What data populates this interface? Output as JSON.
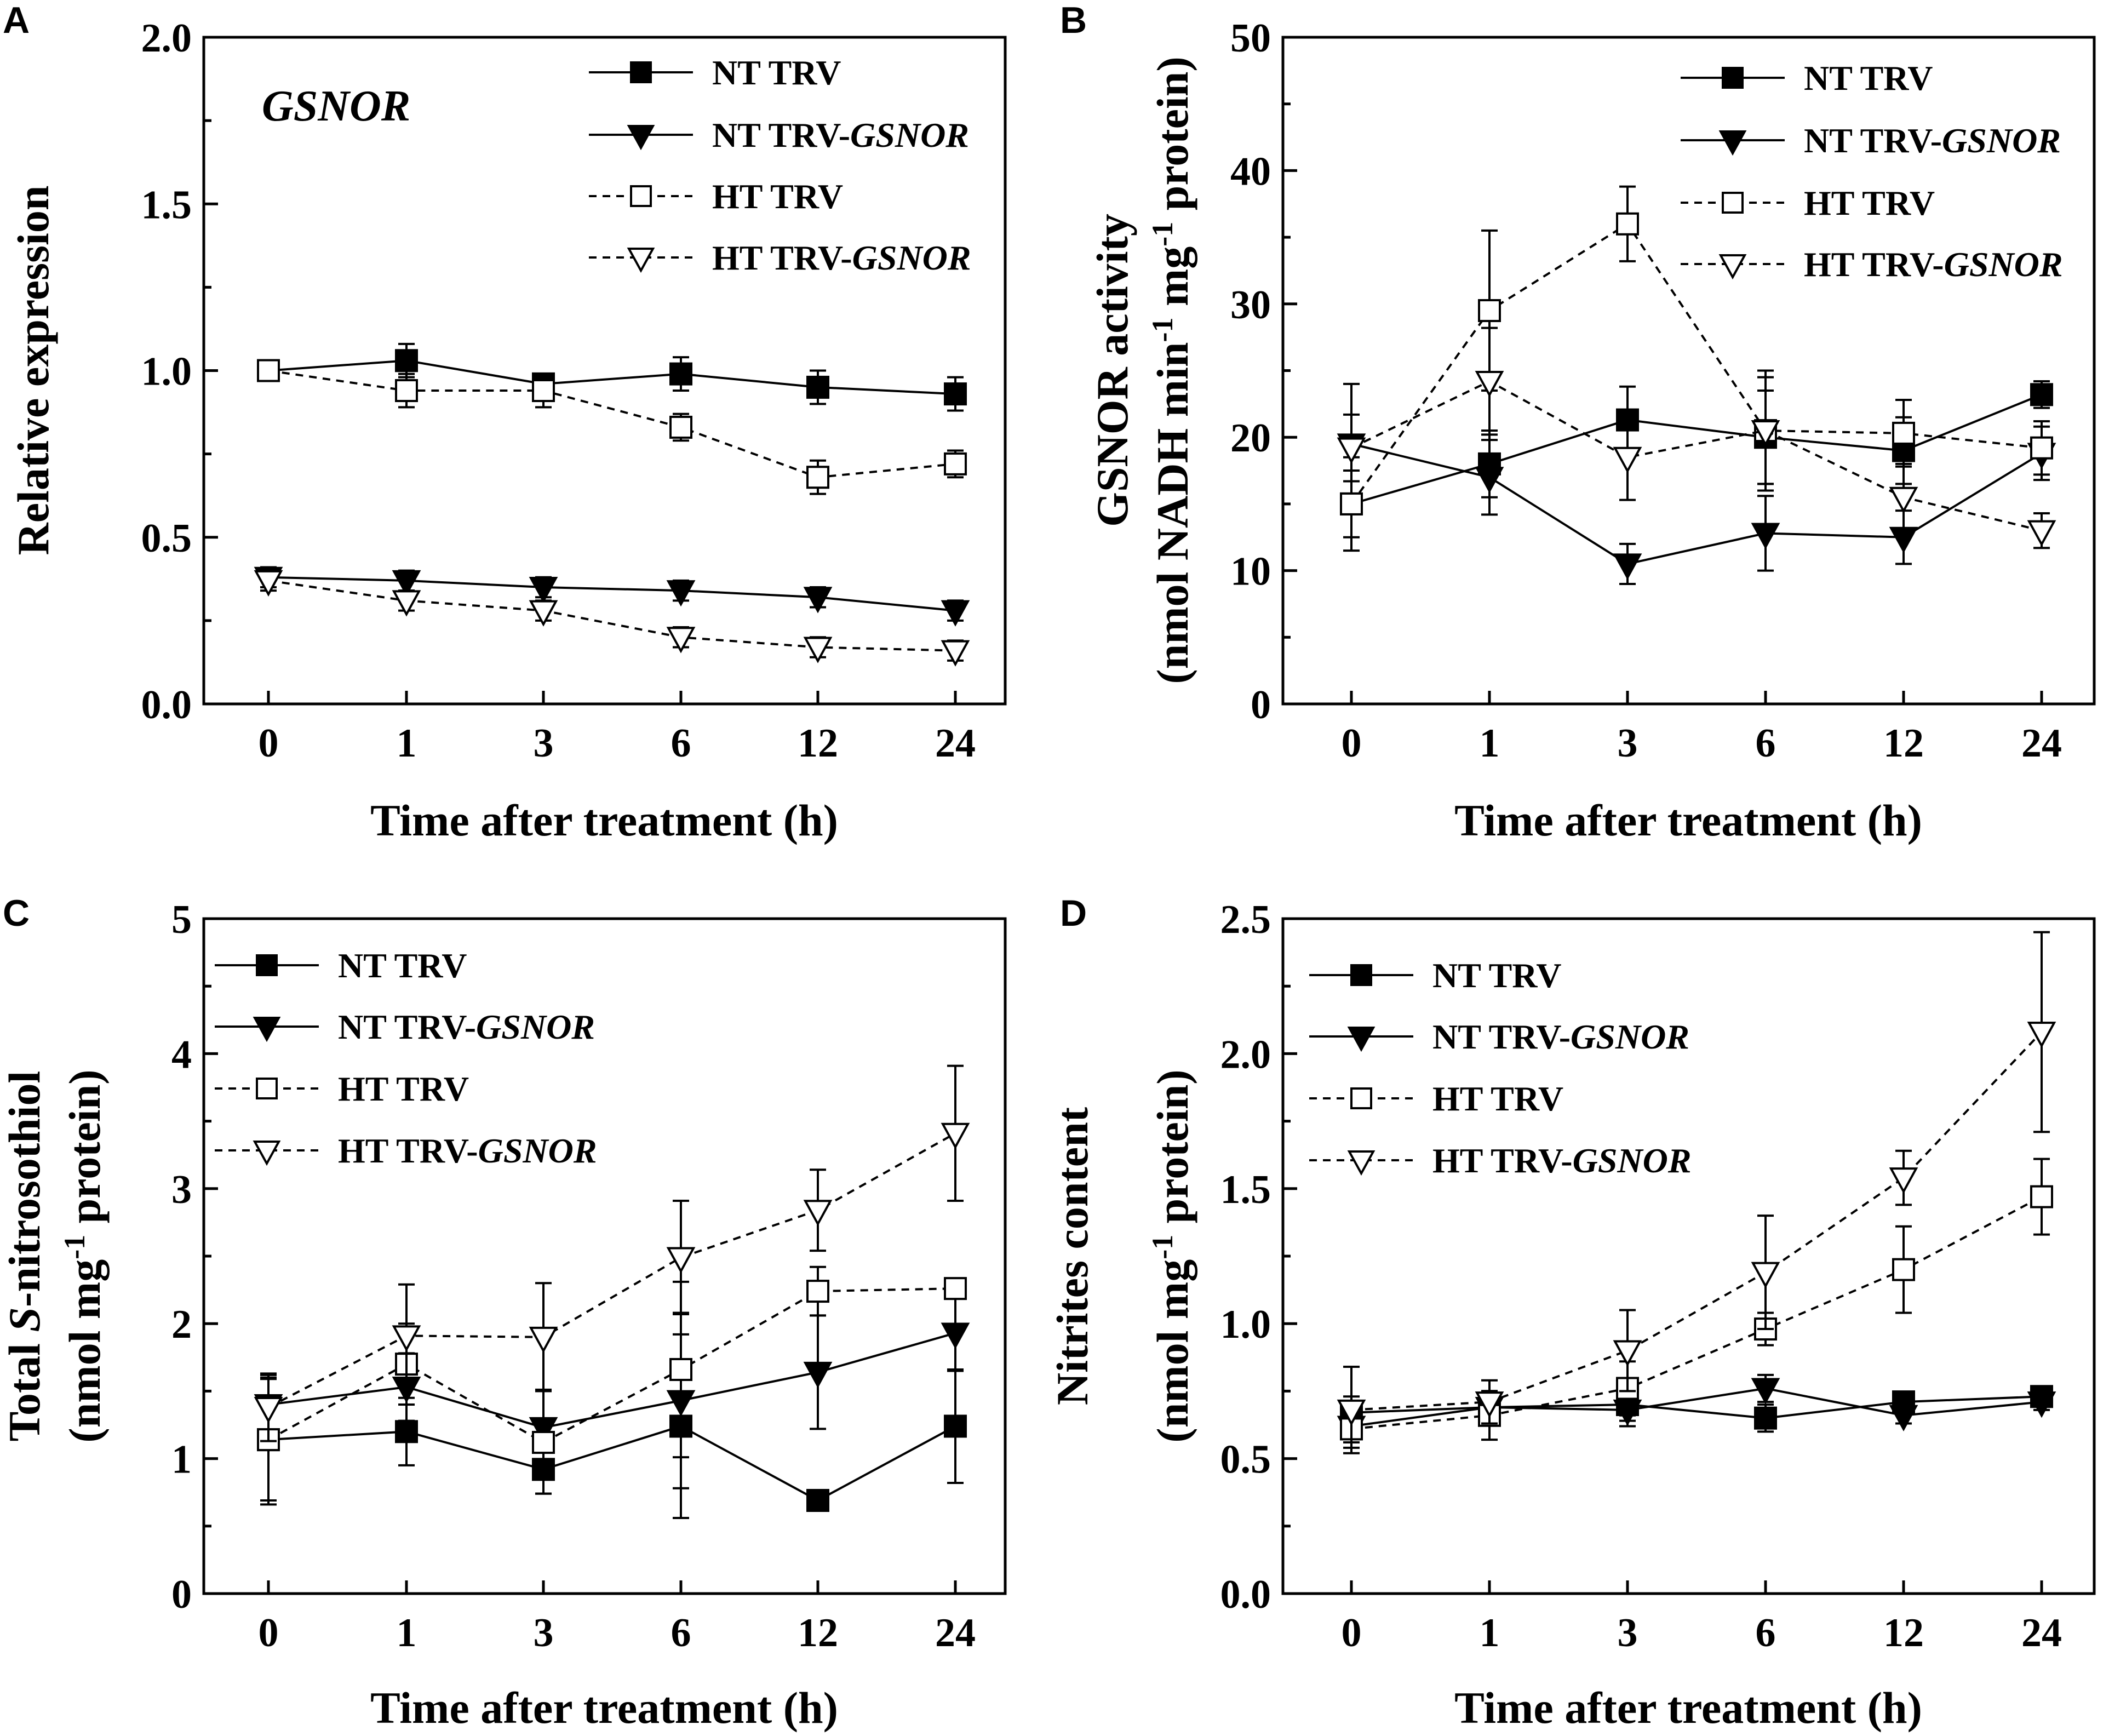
{
  "chart_data": [
    {
      "type": "line",
      "panel": "A",
      "title": "",
      "annotation": "GSNOR",
      "xlabel": "Time after treatment (h)",
      "ylabel_lines": [
        "Relative expression"
      ],
      "categories": [
        "0",
        "1",
        "3",
        "6",
        "12",
        "24"
      ],
      "ylim": [
        0,
        2.0
      ],
      "yticks": [
        "0.0",
        "0.5",
        "1.0",
        "1.5",
        "2.0"
      ],
      "legend_position": "top-right",
      "series": [
        {
          "name": "NT TRV",
          "values": [
            1.0,
            1.03,
            0.96,
            0.99,
            0.95,
            0.93
          ],
          "errors": [
            0.02,
            0.05,
            0.03,
            0.05,
            0.05,
            0.05
          ]
        },
        {
          "name": "NT TRV-GSNOR",
          "values": [
            0.38,
            0.37,
            0.35,
            0.34,
            0.32,
            0.28
          ],
          "errors": [
            0.03,
            0.03,
            0.03,
            0.03,
            0.03,
            0.03
          ]
        },
        {
          "name": "HT TRV",
          "values": [
            1.0,
            0.94,
            0.94,
            0.83,
            0.68,
            0.72
          ],
          "errors": [
            0.02,
            0.05,
            0.05,
            0.04,
            0.05,
            0.04
          ]
        },
        {
          "name": "HT TRV-GSNOR",
          "values": [
            0.37,
            0.31,
            0.28,
            0.2,
            0.17,
            0.16
          ],
          "errors": [
            0.03,
            0.03,
            0.03,
            0.03,
            0.03,
            0.03
          ]
        }
      ]
    },
    {
      "type": "line",
      "panel": "B",
      "title": "",
      "annotation": "",
      "xlabel": "Time after treatment (h)",
      "ylabel_lines": [
        "GSNOR activity",
        "(nmol NADH min-1 mg-1 protein)"
      ],
      "categories": [
        "0",
        "1",
        "3",
        "6",
        "12",
        "24"
      ],
      "ylim": [
        0,
        50
      ],
      "yticks": [
        "0",
        "10",
        "20",
        "30",
        "40",
        "50"
      ],
      "legend_position": "top-right",
      "series": [
        {
          "name": "NT TRV",
          "values": [
            15,
            18,
            21.3,
            20,
            19,
            23.2
          ],
          "errors": [
            3.5,
            2.5,
            2.5,
            3.5,
            2.5,
            1.0
          ]
        },
        {
          "name": "NT TRV-GSNOR",
          "values": [
            19.5,
            17,
            10.5,
            12.8,
            12.5,
            18.8
          ],
          "errors": [
            4.5,
            2.8,
            1.5,
            2.8,
            2.0,
            2.0
          ]
        },
        {
          "name": "HT TRV",
          "values": [
            15,
            29.5,
            36,
            20.5,
            20.3,
            19.2
          ],
          "errors": [
            2.5,
            6.0,
            2.8,
            4.0,
            2.5,
            2.0
          ]
        },
        {
          "name": "HT TRV-GSNOR",
          "values": [
            19.2,
            24.2,
            18.5,
            20.5,
            15.5,
            13
          ],
          "errors": [
            2.5,
            4.0,
            3.2,
            4.5,
            2.5,
            1.3
          ]
        }
      ]
    },
    {
      "type": "line",
      "panel": "C",
      "title": "",
      "annotation": "",
      "xlabel": "Time after treatment (h)",
      "ylabel_lines": [
        "Total S-nitrosothiol",
        "(nmol mg-1 protein)"
      ],
      "categories": [
        "0",
        "1",
        "3",
        "6",
        "12",
        "24"
      ],
      "ylim": [
        0,
        5
      ],
      "yticks": [
        "0",
        "1",
        "2",
        "3",
        "4",
        "5"
      ],
      "legend_position": "top-left",
      "series": [
        {
          "name": "NT TRV",
          "values": [
            1.14,
            1.2,
            0.92,
            1.24,
            0.69,
            1.24
          ],
          "errors": [
            0.48,
            0.25,
            0.18,
            0.68,
            0.03,
            0.42
          ]
        },
        {
          "name": "NT TRV-GSNOR",
          "values": [
            1.4,
            1.53,
            1.23,
            1.43,
            1.64,
            1.93
          ],
          "errors": [
            0.2,
            0.25,
            0.28,
            0.65,
            0.42,
            0.28
          ]
        },
        {
          "name": "HT TRV",
          "values": [
            1.14,
            1.7,
            1.12,
            1.66,
            2.24,
            2.26
          ],
          "errors": [
            0.45,
            0.3,
            0.38,
            0.65,
            0.18,
            0.05
          ]
        },
        {
          "name": "HT TRV-GSNOR",
          "values": [
            1.38,
            1.91,
            1.9,
            2.49,
            2.84,
            3.41
          ],
          "errors": [
            0.25,
            0.38,
            0.4,
            0.42,
            0.3,
            0.5
          ]
        }
      ]
    },
    {
      "type": "line",
      "panel": "D",
      "title": "",
      "annotation": "",
      "xlabel": "Time after treatment (h)",
      "ylabel_lines": [
        "Nitrites content",
        "(nmol mg-1 protein)"
      ],
      "categories": [
        "0",
        "1",
        "3",
        "6",
        "12",
        "24"
      ],
      "ylim": [
        0,
        2.5
      ],
      "yticks": [
        "0.0",
        "0.5",
        "1.0",
        "1.5",
        "2.0",
        "2.5"
      ],
      "legend_position": "top-left",
      "series": [
        {
          "name": "NT TRV",
          "values": [
            0.67,
            0.69,
            0.7,
            0.65,
            0.71,
            0.73
          ],
          "errors": [
            0.06,
            0.06,
            0.06,
            0.05,
            0.03,
            0.03
          ]
        },
        {
          "name": "NT TRV-GSNOR",
          "values": [
            0.62,
            0.69,
            0.68,
            0.76,
            0.66,
            0.71
          ],
          "errors": [
            0.06,
            0.06,
            0.06,
            0.05,
            0.03,
            0.03
          ]
        },
        {
          "name": "HT TRV",
          "values": [
            0.61,
            0.66,
            0.76,
            0.98,
            1.2,
            1.47
          ],
          "errors": [
            0.07,
            0.09,
            0.1,
            0.06,
            0.16,
            0.14
          ]
        },
        {
          "name": "HT TRV-GSNOR",
          "values": [
            0.68,
            0.71,
            0.9,
            1.19,
            1.54,
            2.08
          ],
          "errors": [
            0.16,
            0.08,
            0.15,
            0.21,
            0.1,
            0.37
          ]
        }
      ]
    }
  ],
  "legend_labels": {
    "nt_trv": "NT TRV",
    "nt_trv_gsnor_prefix": "NT TRV-",
    "ht_trv": "HT TRV",
    "ht_trv_gsnor_prefix": "HT TRV-",
    "gene": "GSNOR"
  },
  "panel_letters": [
    "A",
    "B",
    "C",
    "D"
  ],
  "axis_text": {
    "xlabel": "Time after treatment (h)",
    "a_ylabel": "Relative expression",
    "a_gene": "GSNOR",
    "b_ylabel_1": "GSNOR activity",
    "b_ylabel_2_pre": "(nmol NADH min",
    "b_ylabel_2_mid": " mg",
    "b_ylabel_2_post": " protein)",
    "superscript": "-1",
    "c_ylabel_1_pre": "Total ",
    "c_ylabel_1_ital": "S",
    "c_ylabel_1_post": "-nitrosothiol",
    "c_ylabel_2_pre": "(nmol mg",
    "c_ylabel_2_post": " protein)",
    "d_ylabel_1": "Nitrites content",
    "d_ylabel_2_pre": "(nmol mg",
    "d_ylabel_2_post": " protein)"
  }
}
